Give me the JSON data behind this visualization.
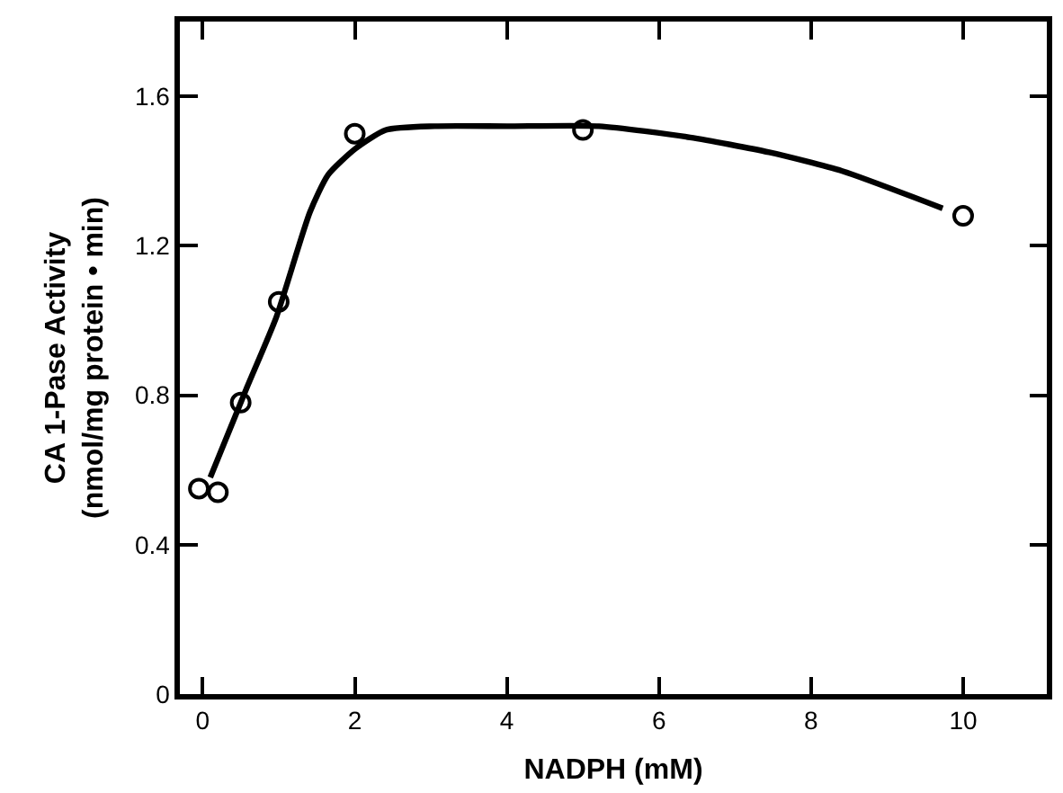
{
  "chart_data": {
    "type": "scatter",
    "xlabel": "NADPH (mM)",
    "ylabel": "CA 1-Pase Activity\n(nmol/mg protein • min)",
    "xlim": [
      -0.3,
      11.1
    ],
    "xticks": [
      0,
      2,
      4,
      6,
      8,
      10
    ],
    "ylim": [
      0,
      1.8
    ],
    "yticks": [
      0,
      0.4,
      0.8,
      1.2,
      1.6
    ],
    "series": [
      {
        "type": "line",
        "color": "#000000",
        "marker": "none",
        "line_style": "solid",
        "x": [
          0.1,
          0.58,
          0.97,
          1.41,
          1.65,
          2.01,
          2.41,
          3.05,
          4.0,
          5.21,
          6.41,
          7.45,
          8.41,
          9.73
        ],
        "values": [
          0.58,
          0.82,
          1.01,
          1.29,
          1.39,
          1.46,
          1.51,
          1.52,
          1.52,
          1.52,
          1.49,
          1.45,
          1.4,
          1.3
        ]
      },
      {
        "color": "#000000",
        "marker": "circle",
        "x": [
          -0.05,
          0.2,
          0.5,
          1.0,
          2.0,
          5.0,
          10.0
        ],
        "values": [
          0.55,
          0.54,
          0.78,
          1.05,
          1.5,
          1.51,
          1.28
        ]
      }
    ]
  }
}
